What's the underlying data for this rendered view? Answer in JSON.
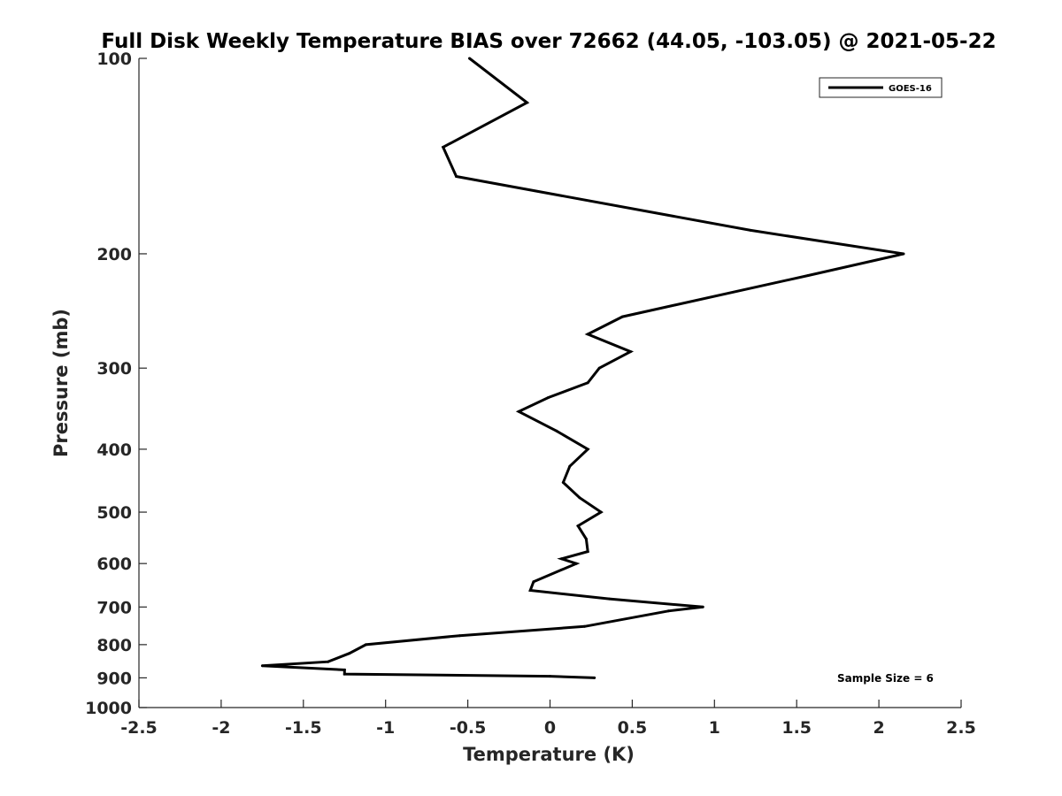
{
  "chart_data": {
    "type": "line",
    "title": "Full Disk Weekly Temperature BIAS over 72662 (44.05, -103.05) @ 2021-05-22",
    "xlabel": "Temperature (K)",
    "ylabel": "Pressure (mb)",
    "xlim": [
      -2.5,
      2.5
    ],
    "ylim": [
      1000,
      100
    ],
    "y_scale": "log",
    "x_ticks": [
      "-2.5",
      "-2",
      "-1.5",
      "-1",
      "-0.5",
      "0",
      "0.5",
      "1",
      "1.5",
      "2",
      "2.5"
    ],
    "y_ticks": [
      "100",
      "200",
      "300",
      "400",
      "500",
      "600",
      "700",
      "800",
      "900",
      "1000"
    ],
    "grid": false,
    "legend_position": "top-right",
    "series": [
      {
        "name": "GOES-16",
        "color": "#000000",
        "points": [
          {
            "x": -0.49,
            "y": 100
          },
          {
            "x": -0.14,
            "y": 117
          },
          {
            "x": -0.65,
            "y": 137
          },
          {
            "x": -0.57,
            "y": 152
          },
          {
            "x": 1.22,
            "y": 184
          },
          {
            "x": 2.15,
            "y": 200
          },
          {
            "x": 1.57,
            "y": 216
          },
          {
            "x": 0.44,
            "y": 250
          },
          {
            "x": 0.23,
            "y": 266
          },
          {
            "x": 0.49,
            "y": 283
          },
          {
            "x": 0.3,
            "y": 300
          },
          {
            "x": 0.23,
            "y": 316
          },
          {
            "x": -0.01,
            "y": 333
          },
          {
            "x": -0.19,
            "y": 350
          },
          {
            "x": 0.04,
            "y": 375
          },
          {
            "x": 0.23,
            "y": 400
          },
          {
            "x": 0.12,
            "y": 425
          },
          {
            "x": 0.08,
            "y": 450
          },
          {
            "x": 0.18,
            "y": 475
          },
          {
            "x": 0.31,
            "y": 500
          },
          {
            "x": 0.17,
            "y": 525
          },
          {
            "x": 0.22,
            "y": 550
          },
          {
            "x": 0.23,
            "y": 575
          },
          {
            "x": 0.07,
            "y": 590
          },
          {
            "x": 0.16,
            "y": 600
          },
          {
            "x": -0.1,
            "y": 640
          },
          {
            "x": -0.12,
            "y": 660
          },
          {
            "x": 0.36,
            "y": 680
          },
          {
            "x": 0.93,
            "y": 700
          },
          {
            "x": 0.72,
            "y": 710
          },
          {
            "x": 0.21,
            "y": 750
          },
          {
            "x": -0.55,
            "y": 775
          },
          {
            "x": -1.12,
            "y": 800
          },
          {
            "x": -1.22,
            "y": 825
          },
          {
            "x": -1.35,
            "y": 850
          },
          {
            "x": -1.75,
            "y": 862
          },
          {
            "x": -1.25,
            "y": 875
          },
          {
            "x": -1.25,
            "y": 888
          },
          {
            "x": 0.0,
            "y": 895
          },
          {
            "x": 0.27,
            "y": 900
          }
        ]
      }
    ],
    "annotations": [
      "Sample Size = 6"
    ]
  }
}
